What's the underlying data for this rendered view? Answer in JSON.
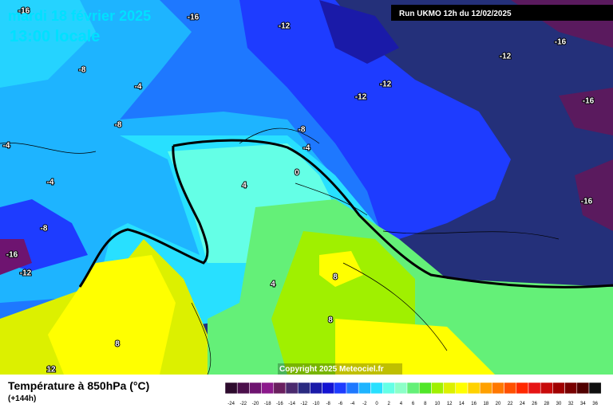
{
  "header": {
    "title": "mardi 18 février 2025",
    "time": "13:00 locale",
    "run": "Run UKMO 12h du 12/02/2025"
  },
  "map": {
    "contour_labels": [
      -16,
      -16,
      -12,
      -16,
      -12,
      -8,
      -12,
      -4,
      -12,
      -16,
      -8,
      -8,
      -4,
      -4,
      0,
      -4,
      4,
      -16,
      -8,
      -16,
      -12,
      8,
      4,
      8,
      8,
      12
    ],
    "copyright": "Copyright 2025 Meteociel.fr"
  },
  "footer": {
    "title": "Température à 850hPa (°C)",
    "lead": "(+144h)"
  },
  "legend": {
    "labels": [
      -24,
      -22,
      -20,
      -18,
      -16,
      -14,
      -12,
      -10,
      -8,
      -6,
      -4,
      -2,
      0,
      2,
      4,
      6,
      8,
      10,
      12,
      14,
      16,
      18,
      20,
      22,
      24,
      26,
      28,
      30,
      32,
      34,
      36
    ],
    "colors": [
      "#2d0b2d",
      "#4b0f4b",
      "#6e1470",
      "#8c1a8c",
      "#6a1f5f",
      "#4b2a6e",
      "#2a2a80",
      "#1a1aa8",
      "#1414d2",
      "#1e3cff",
      "#1e78ff",
      "#1eb4ff",
      "#28e0ff",
      "#64ffe6",
      "#8cffc8",
      "#64f078",
      "#50e628",
      "#a0f000",
      "#dcf000",
      "#ffff00",
      "#ffd200",
      "#ffa000",
      "#ff7800",
      "#ff5000",
      "#ff2800",
      "#e61414",
      "#c80a0a",
      "#a00000",
      "#780000",
      "#500000",
      "#101010"
    ]
  }
}
